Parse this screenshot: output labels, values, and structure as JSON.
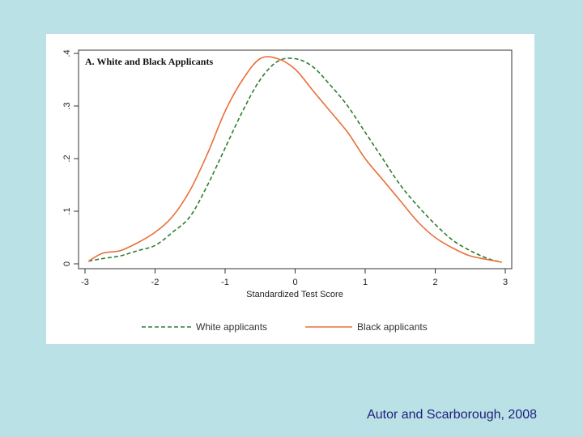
{
  "citation": "Autor and Scarborough, 2008",
  "chart_data": {
    "type": "line",
    "title": "A. White and Black Applicants",
    "xlabel": "Standardized Test Score",
    "ylabel": "",
    "xlim": [
      -3,
      3
    ],
    "ylim": [
      0,
      0.4
    ],
    "x_ticks": [
      -3,
      -2,
      -1,
      0,
      1,
      2,
      3
    ],
    "x_tick_labels": [
      "-3",
      "-2",
      "-1",
      "0",
      "1",
      "2",
      "3"
    ],
    "y_ticks": [
      0,
      0.1,
      0.2,
      0.3,
      0.4
    ],
    "y_tick_labels": [
      "0",
      ".1",
      ".2",
      ".3",
      ".4"
    ],
    "grid": false,
    "legend_position": "bottom",
    "series": [
      {
        "name": "White applicants",
        "color": "#2e7d32",
        "dash": "dashed",
        "x": [
          -2.95,
          -2.75,
          -2.5,
          -2.25,
          -2.0,
          -1.75,
          -1.5,
          -1.25,
          -1.0,
          -0.75,
          -0.5,
          -0.25,
          0.0,
          0.25,
          0.5,
          0.75,
          1.0,
          1.25,
          1.5,
          1.75,
          2.0,
          2.25,
          2.5,
          2.75,
          2.95
        ],
        "y": [
          0.005,
          0.01,
          0.015,
          0.025,
          0.035,
          0.06,
          0.09,
          0.15,
          0.22,
          0.29,
          0.35,
          0.385,
          0.39,
          0.375,
          0.34,
          0.3,
          0.25,
          0.2,
          0.15,
          0.11,
          0.075,
          0.045,
          0.025,
          0.01,
          0.003
        ]
      },
      {
        "name": "Black applicants",
        "color": "#e8703a",
        "dash": "solid",
        "x": [
          -2.95,
          -2.75,
          -2.5,
          -2.25,
          -2.0,
          -1.75,
          -1.5,
          -1.25,
          -1.0,
          -0.75,
          -0.5,
          -0.25,
          0.0,
          0.25,
          0.5,
          0.75,
          1.0,
          1.25,
          1.5,
          1.75,
          2.0,
          2.25,
          2.5,
          2.75,
          2.95
        ],
        "y": [
          0.005,
          0.02,
          0.025,
          0.04,
          0.06,
          0.09,
          0.14,
          0.21,
          0.29,
          0.35,
          0.39,
          0.39,
          0.37,
          0.33,
          0.29,
          0.25,
          0.2,
          0.16,
          0.12,
          0.08,
          0.05,
          0.03,
          0.015,
          0.008,
          0.003
        ]
      }
    ]
  }
}
